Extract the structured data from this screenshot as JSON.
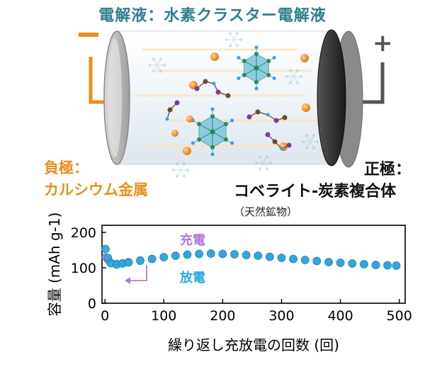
{
  "diagram": {
    "title": "電解液：水素クラスター電解液",
    "negative": {
      "sign": "ー",
      "line1": "負極：",
      "line2": "カルシウム金属"
    },
    "positive": {
      "sign": "+",
      "line1": "正極：",
      "line2": "コベライト-炭素複合体",
      "note": "（天然鉱物）"
    },
    "colors": {
      "title": "#2f7f8f",
      "negative": "#e8901a",
      "charge": "#b07ad8",
      "discharge": "#2aa8e0",
      "cluster": "#55b8c9",
      "ion": "#e8901a"
    }
  },
  "chart_data": {
    "type": "scatter",
    "xlabel": "繰り返し充放電の回数 (回)",
    "ylabel": "容量 (mAh g-1)",
    "xlim": [
      -5,
      510
    ],
    "ylim": [
      0,
      220
    ],
    "xticks": [
      0,
      100,
      200,
      300,
      400,
      500
    ],
    "yticks": [
      0,
      100,
      200
    ],
    "legend": {
      "position": "top-center",
      "arrow_label": "放電"
    },
    "series": [
      {
        "name": "充電",
        "color": "#b07ad8",
        "points": [
          [
            1,
            130
          ],
          [
            5,
            122
          ],
          [
            10,
            115
          ],
          [
            20,
            112
          ],
          [
            30,
            114
          ],
          [
            40,
            117
          ],
          [
            60,
            122
          ],
          [
            80,
            126
          ],
          [
            100,
            131
          ],
          [
            120,
            135
          ],
          [
            140,
            138
          ],
          [
            160,
            140
          ],
          [
            180,
            141
          ],
          [
            200,
            140
          ],
          [
            220,
            139
          ],
          [
            240,
            137
          ],
          [
            260,
            135
          ],
          [
            280,
            132
          ],
          [
            300,
            129
          ],
          [
            320,
            126
          ],
          [
            340,
            123
          ],
          [
            360,
            120
          ],
          [
            380,
            117
          ],
          [
            400,
            115
          ],
          [
            420,
            113
          ],
          [
            440,
            111
          ],
          [
            460,
            109
          ],
          [
            480,
            108
          ],
          [
            495,
            107
          ]
        ]
      },
      {
        "name": "放電",
        "color": "#2aa8e0",
        "points": [
          [
            1,
            153
          ],
          [
            5,
            128
          ],
          [
            10,
            113
          ],
          [
            20,
            109
          ],
          [
            30,
            112
          ],
          [
            40,
            115
          ],
          [
            60,
            120
          ],
          [
            80,
            125
          ],
          [
            100,
            130
          ],
          [
            120,
            134
          ],
          [
            140,
            137
          ],
          [
            160,
            139
          ],
          [
            180,
            140
          ],
          [
            200,
            139
          ],
          [
            220,
            138
          ],
          [
            240,
            136
          ],
          [
            260,
            134
          ],
          [
            280,
            131
          ],
          [
            300,
            128
          ],
          [
            320,
            125
          ],
          [
            340,
            122
          ],
          [
            360,
            119
          ],
          [
            380,
            116
          ],
          [
            400,
            114
          ],
          [
            420,
            112
          ],
          [
            440,
            110
          ],
          [
            460,
            108
          ],
          [
            480,
            107
          ],
          [
            495,
            106
          ]
        ]
      }
    ]
  }
}
